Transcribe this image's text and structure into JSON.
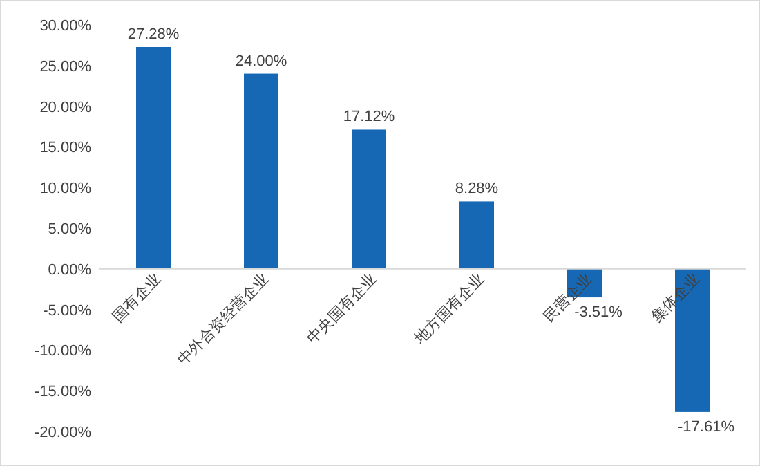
{
  "chart_data": {
    "type": "bar",
    "categories": [
      "国有企业",
      "中外合资经营企业",
      "中央国有企业",
      "地方国有企业",
      "民营企业",
      "集体企业"
    ],
    "values": [
      27.28,
      24.0,
      17.12,
      8.28,
      -3.51,
      -17.61
    ],
    "value_labels": [
      "27.28%",
      "24.00%",
      "17.12%",
      "8.28%",
      "-3.51%",
      "-17.61%"
    ],
    "color": "#1668b4",
    "ylim": [
      -20,
      30
    ],
    "yticks": [
      {
        "value": -20,
        "label": "-20.00%"
      },
      {
        "value": -15,
        "label": "-15.00%"
      },
      {
        "value": -10,
        "label": "-10.00%"
      },
      {
        "value": -5,
        "label": "-5.00%"
      },
      {
        "value": 0,
        "label": "0.00%"
      },
      {
        "value": 5,
        "label": "5.00%"
      },
      {
        "value": 10,
        "label": "10.00%"
      },
      {
        "value": 15,
        "label": "15.00%"
      },
      {
        "value": 20,
        "label": "20.00%"
      },
      {
        "value": 25,
        "label": "25.00%"
      },
      {
        "value": 30,
        "label": "30.00%"
      }
    ],
    "grid": false
  }
}
